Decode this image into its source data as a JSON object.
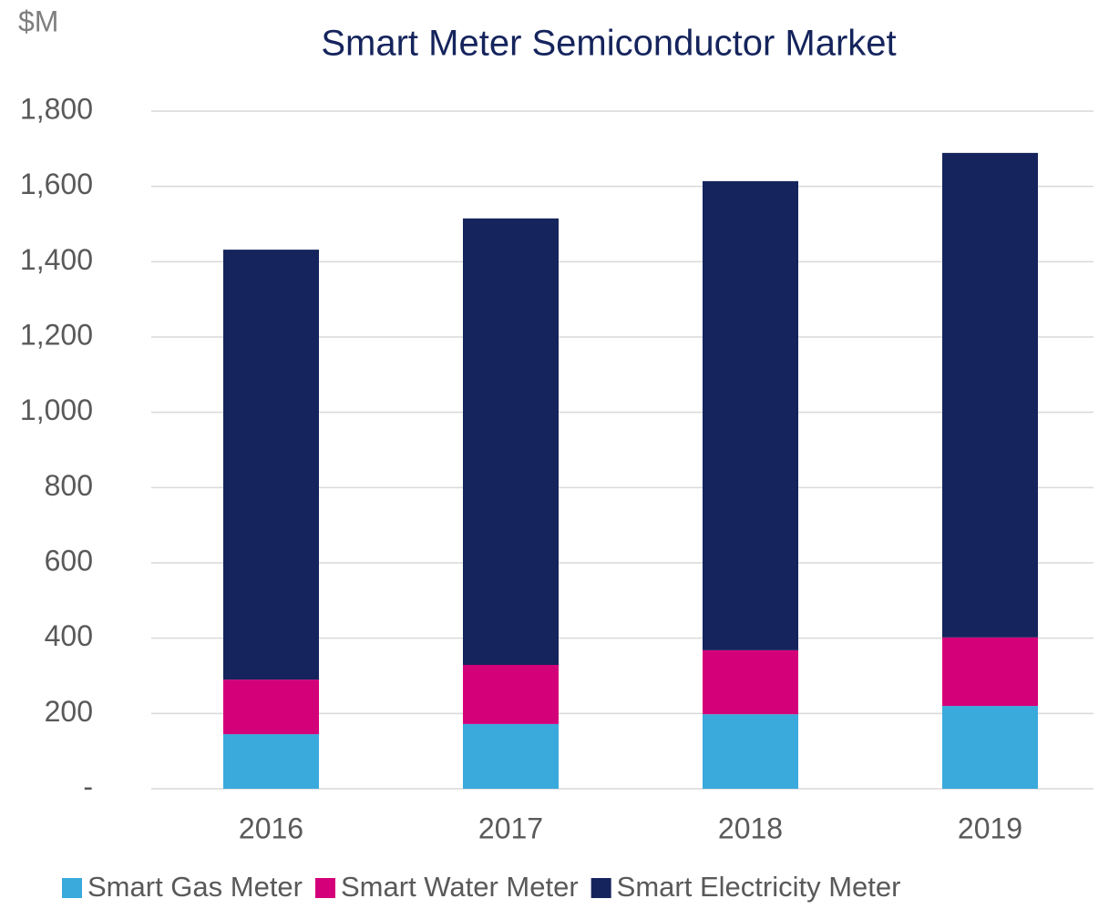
{
  "chart_data": {
    "type": "stacked_bar",
    "title": "Smart Meter Semiconductor Market",
    "y_label": "$M",
    "categories": [
      "2016",
      "2017",
      "2018",
      "2019"
    ],
    "series": [
      {
        "name": "Smart Gas Meter",
        "color": "#3aa9dc",
        "values": [
          145,
          172,
          198,
          220
        ]
      },
      {
        "name": "Smart Water Meter",
        "color": "#d4007a",
        "values": [
          145,
          157,
          170,
          182
        ]
      },
      {
        "name": "Smart Electricity Meter",
        "color": "#15245c",
        "values": [
          1142,
          1186,
          1246,
          1287
        ]
      }
    ],
    "ylim": [
      0,
      1800
    ],
    "yticks": [
      {
        "value": 0,
        "label": "-"
      },
      200,
      400,
      600,
      800,
      {
        "value": 1000,
        "label": "1,000"
      },
      {
        "value": 1200,
        "label": "1,200"
      },
      {
        "value": 1400,
        "label": "1,400"
      },
      {
        "value": 1600,
        "label": "1,600"
      },
      {
        "value": 1800,
        "label": "1,800"
      }
    ],
    "grid": true,
    "legend": "bottom"
  }
}
